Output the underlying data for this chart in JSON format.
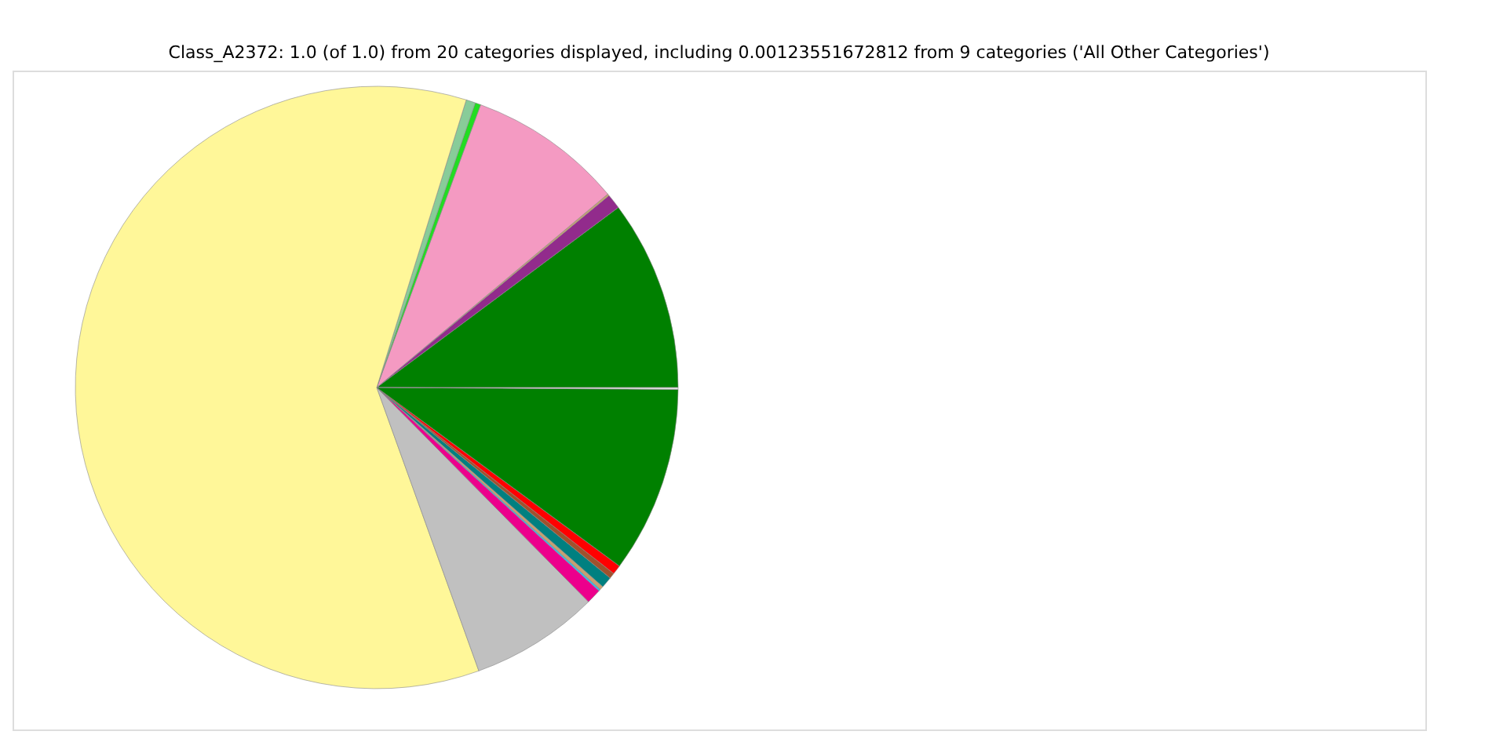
{
  "chart_data": {
    "type": "pie",
    "title": "Class_A2372: 1.0 (of 1.0) from 20 categories displayed, including 0.00123551672812 from 9 categories ('All Other Categories')",
    "categories": [
      null,
      null,
      null,
      null,
      null,
      null,
      null,
      null,
      null,
      null,
      null,
      null,
      null,
      null,
      null,
      null
    ],
    "values": [
      10.2,
      0.8,
      0.1,
      8.3,
      0.3,
      0.5,
      60.3,
      6.9,
      0.8,
      0.1,
      0.2,
      0.6,
      0.3,
      0.5,
      10.0,
      0.1
    ],
    "colors": [
      "#008000",
      "#922b8c",
      "#c8a070",
      "#f49ac2",
      "#22dd22",
      "#88cc99",
      "#fff799",
      "#c0c0c0",
      "#ec008c",
      "#33bbee",
      "#c8a070",
      "#008080",
      "#a0522d",
      "#ff0000",
      "#008000",
      "#e8e8e8"
    ],
    "legend": false
  }
}
